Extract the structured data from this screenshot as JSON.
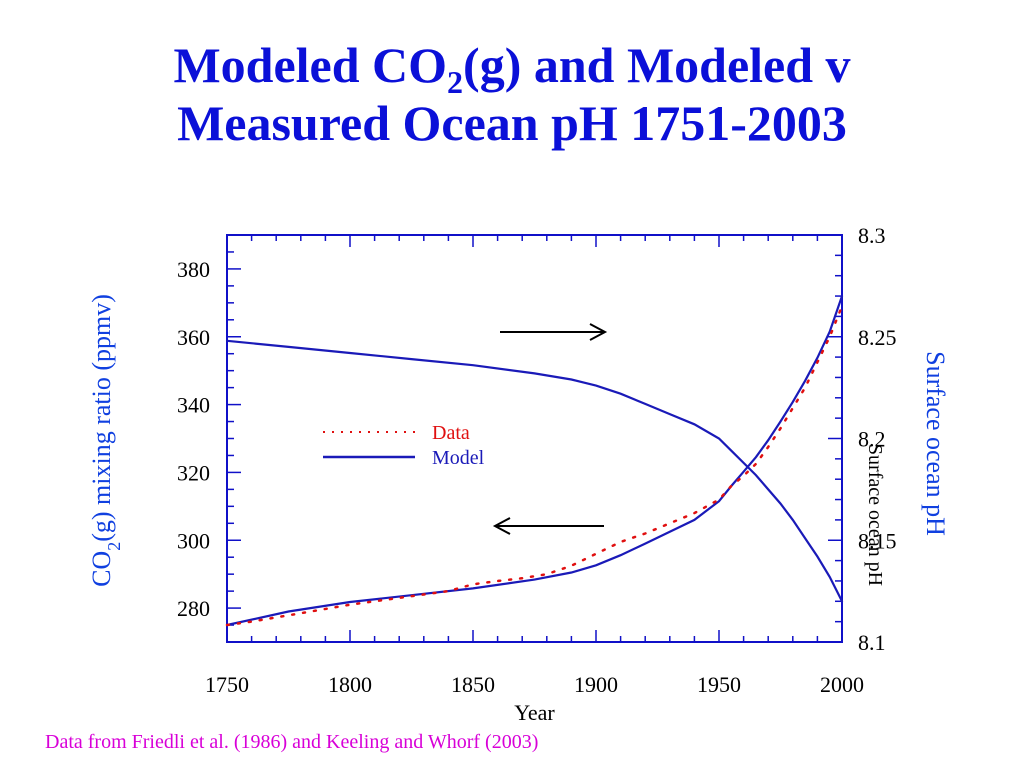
{
  "slide": {
    "title_line1_a": "Modeled CO",
    "title_line1_sub": "2",
    "title_line1_b": "(g) and Modeled v",
    "title_line2": "Measured Ocean pH 1751-2003",
    "footer": "Data from Friedli et al. (1986) and Keeling and Whorf (2003)"
  },
  "colors": {
    "title": "#0b10d8",
    "axis": "#1010c8",
    "model": "#1a1ab8",
    "data": "#e01010",
    "footer": "#d800d8",
    "right_label": "#1040e0"
  },
  "chart_data": {
    "type": "line",
    "xlabel": "Year",
    "xlim": [
      1750,
      2000
    ],
    "x_ticks": [
      "1750",
      "1800",
      "1850",
      "1900",
      "1950",
      "2000"
    ],
    "ylabel_left_a": "CO",
    "ylabel_left_sub": "2",
    "ylabel_left_b": "(g) mixing ratio (ppmv)",
    "ylim_left": [
      270,
      390
    ],
    "y_ticks_left": [
      "280",
      "300",
      "320",
      "340",
      "360",
      "380"
    ],
    "ylabel_right": "Surface ocean pH",
    "ylabel_right_overlay": "Surface ocean pH",
    "ylim_right": [
      8.1,
      8.3
    ],
    "y_ticks_right": [
      "8.1",
      "8.15",
      "8.2",
      "8.25",
      "8.3"
    ],
    "legend": {
      "position": "center-left",
      "data_label": "Data",
      "model_label": "Model"
    },
    "arrows": [
      {
        "direction": "right",
        "meaning": "pH uses right axis"
      },
      {
        "direction": "left",
        "meaning": "CO2 uses left axis"
      }
    ],
    "series": [
      {
        "name": "Model",
        "axis": "left",
        "style": "solid",
        "x": [
          1750,
          1775,
          1800,
          1825,
          1850,
          1875,
          1890,
          1900,
          1910,
          1920,
          1930,
          1940,
          1950,
          1955,
          1960,
          1965,
          1970,
          1975,
          1980,
          1985,
          1990,
          1995,
          2000
        ],
        "y": [
          275,
          279,
          281.8,
          283.8,
          285.8,
          288.4,
          290.5,
          292.6,
          295.6,
          299,
          302.5,
          306,
          311.5,
          316,
          320.2,
          324.5,
          329.5,
          335,
          340.8,
          347,
          353.8,
          361.5,
          372
        ]
      },
      {
        "name": "Data",
        "axis": "left",
        "style": "dotted",
        "x": [
          1750,
          1760,
          1780,
          1800,
          1820,
          1840,
          1850,
          1860,
          1870,
          1880,
          1890,
          1900,
          1910,
          1920,
          1930,
          1940,
          1950,
          1955,
          1960,
          1965,
          1970,
          1975,
          1980,
          1985,
          1990,
          1995,
          2000
        ],
        "y": [
          275,
          276,
          278.5,
          281,
          283,
          285,
          287,
          288,
          288.8,
          290,
          292.5,
          296,
          299.5,
          302,
          305,
          308,
          312,
          316,
          319,
          322.5,
          327.5,
          333,
          339,
          345,
          352.5,
          360,
          369
        ]
      },
      {
        "name": "Model",
        "axis": "right",
        "style": "solid",
        "x": [
          1750,
          1775,
          1800,
          1825,
          1850,
          1875,
          1890,
          1900,
          1910,
          1920,
          1930,
          1940,
          1950,
          1955,
          1960,
          1965,
          1970,
          1975,
          1980,
          1985,
          1990,
          1995,
          2000
        ],
        "y": [
          8.248,
          8.245,
          8.242,
          8.239,
          8.236,
          8.232,
          8.229,
          8.226,
          8.222,
          8.217,
          8.212,
          8.207,
          8.2,
          8.194,
          8.188,
          8.182,
          8.175,
          8.168,
          8.16,
          8.151,
          8.142,
          8.132,
          8.12
        ]
      }
    ]
  }
}
